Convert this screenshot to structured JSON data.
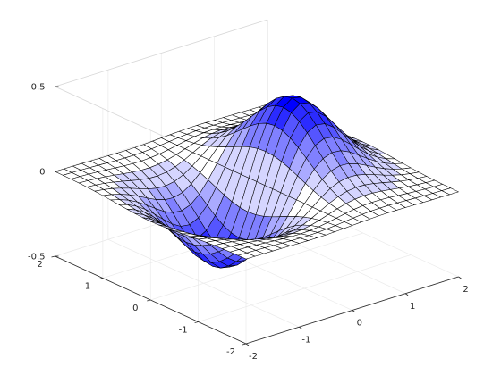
{
  "chart_data": {
    "type": "surface",
    "title": "",
    "xlabel": "",
    "ylabel": "",
    "zlabel": "",
    "function": "z = x * exp(-x^2 - y^2)",
    "xlim": [
      -2,
      2
    ],
    "ylim": [
      -2,
      2
    ],
    "zlim": [
      -0.5,
      0.5
    ],
    "grid_points": 25,
    "x_ticks": [
      "-2",
      "-1",
      "0",
      "1",
      "2"
    ],
    "y_ticks": [
      "-2",
      "-1",
      "0",
      "1",
      "2"
    ],
    "z_ticks": [
      "-0.5",
      "0",
      "0.5"
    ],
    "view": {
      "azimuth": -37.5,
      "elevation": 30
    },
    "grid": true,
    "edge_color": "#000000",
    "colormap": [
      "#ffffff",
      "#0000ff"
    ]
  }
}
